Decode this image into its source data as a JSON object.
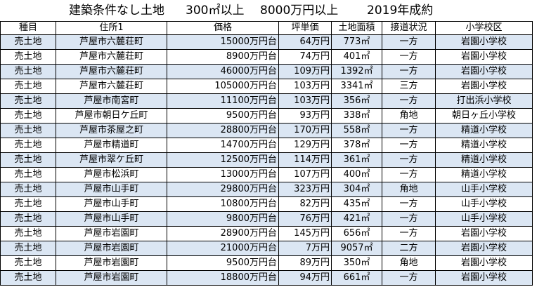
{
  "title": {
    "main": "建築条件なし土地",
    "area": "300㎡以上",
    "price": "8000万円以上",
    "year": "2019年成約"
  },
  "headers": [
    "種目",
    "住所1",
    "価格",
    "坪単価",
    "土地面積",
    "接道状況",
    "小学校区"
  ],
  "rows": [
    [
      "売土地",
      "芦屋市六麓荘町",
      "15000万円台",
      "64万円",
      "773㎡",
      "一方",
      "岩園小学校"
    ],
    [
      "売土地",
      "芦屋市六麓荘町",
      "8900万円台",
      "74万円",
      "401㎡",
      "一方",
      "岩園小学校"
    ],
    [
      "売土地",
      "芦屋市六麓荘町",
      "46000万円台",
      "109万円",
      "1392㎡",
      "一方",
      "岩園小学校"
    ],
    [
      "売土地",
      "芦屋市六麓荘町",
      "105000万円台",
      "103万円",
      "3341㎡",
      "三方",
      "岩園小学校"
    ],
    [
      "売土地",
      "芦屋市南宮町",
      "11100万円台",
      "103万円",
      "356㎡",
      "一方",
      "打出浜小学校"
    ],
    [
      "売土地",
      "芦屋市朝日ケ丘町",
      "9500万円台",
      "93万円",
      "338㎡",
      "角地",
      "朝日ヶ丘小学校"
    ],
    [
      "売土地",
      "芦屋市茶屋之町",
      "28800万円台",
      "170万円",
      "558㎡",
      "一方",
      "精道小学校"
    ],
    [
      "売土地",
      "芦屋市精道町",
      "14700万円台",
      "129万円",
      "378㎡",
      "一方",
      "精道小学校"
    ],
    [
      "売土地",
      "芦屋市翠ケ丘町",
      "12500万円台",
      "114万円",
      "361㎡",
      "一方",
      "精道小学校"
    ],
    [
      "売土地",
      "芦屋市松浜町",
      "13000万円台",
      "107万円",
      "400㎡",
      "一方",
      "精道小学校"
    ],
    [
      "売土地",
      "芦屋市山手町",
      "29800万円台",
      "323万円",
      "304㎡",
      "角地",
      "山手小学校"
    ],
    [
      "売土地",
      "芦屋市山手町",
      "10800万円台",
      "82万円",
      "435㎡",
      "一方",
      "山手小学校"
    ],
    [
      "売土地",
      "芦屋市山手町",
      "9800万円台",
      "76万円",
      "421㎡",
      "一方",
      "山手小学校"
    ],
    [
      "売土地",
      "芦屋市岩園町",
      "28900万円台",
      "145万円",
      "656㎡",
      "一方",
      "岩園小学校"
    ],
    [
      "売土地",
      "芦屋市岩園町",
      "21000万円台",
      "7万円",
      "9057㎡",
      "二方",
      "岩園小学校"
    ],
    [
      "売土地",
      "芦屋市岩園町",
      "9500万円台",
      "89万円",
      "350㎡",
      "角地",
      "岩園小学校"
    ],
    [
      "売土地",
      "芦屋市岩園町",
      "18800万円台",
      "94万円",
      "661㎡",
      "一方",
      "岩園小学校"
    ]
  ]
}
